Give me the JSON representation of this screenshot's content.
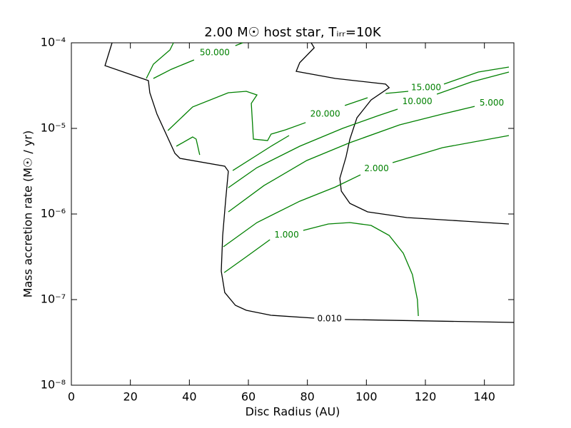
{
  "chart_data": {
    "type": "contour",
    "title": "2.00 M☉ host star, Tᵢᵣᵣ=10K",
    "xlabel": "Disc Radius (AU)",
    "ylabel": "Mass accretion rate (M☉ / yr)",
    "xlim": [
      0,
      150
    ],
    "ylim": [
      1e-08,
      0.0001
    ],
    "yscale": "log",
    "xticks": [
      0,
      20,
      40,
      60,
      80,
      100,
      120,
      140
    ],
    "yticks": [
      {
        "value": 1e-08,
        "label": "10⁻⁸"
      },
      {
        "value": 1e-07,
        "label": "10⁻⁷"
      },
      {
        "value": 1e-06,
        "label": "10⁻⁶"
      },
      {
        "value": 1e-05,
        "label": "10⁻⁵"
      },
      {
        "value": 0.0001,
        "label": "10⁻⁴"
      }
    ],
    "series": [
      {
        "value": 0.01,
        "value_label": "0.010",
        "color": "#000000",
        "x": [
          13.8,
          11.4,
          26.1,
          26.6,
          29.0,
          35.1,
          36.8,
          52.0,
          53.2,
          52.3,
          51.3,
          50.8,
          52.0,
          55.6,
          59.3,
          67.7,
          82.3,
          null,
          92.7,
          150,
          null,
          81.3,
          82.3,
          77.4,
          76.2,
          89.5,
          106.5,
          107.7,
          101.6,
          96.8,
          94.4,
          93.1,
          91.0,
          91.5,
          94.4,
          100.4,
          113.7,
          133.1,
          148.3
        ],
        "y": [
          0.0001,
          5.41e-05,
          3.62e-05,
          2.61e-05,
          1.47e-05,
          5.11e-06,
          4.47e-06,
          3.62e-06,
          3.16e-06,
          1.47e-06,
          5.62e-07,
          2.15e-07,
          1.21e-07,
          8.58e-08,
          7.5e-08,
          6.56e-08,
          6.07e-08,
          null,
          5.85e-08,
          5.41e-08,
          null,
          0.0001,
          8.75e-05,
          5.85e-05,
          4.64e-05,
          3.83e-05,
          3.29e-05,
          2.99e-05,
          2.15e-05,
          1.33e-05,
          7.5e-06,
          4.64e-06,
          2.61e-06,
          1.85e-06,
          1.33e-06,
          1.06e-06,
          9.08e-07,
          8.25e-07,
          7.64e-07
        ]
      },
      {
        "value": 1,
        "value_label": "1.000",
        "color": "#008000",
        "x": [
          51.8,
          59.3,
          67.3,
          null,
          78.6,
          87.1,
          94.4,
          101.6,
          107.7,
          112.5,
          115.6,
          117.3,
          117.6
        ],
        "y": [
          2.07e-07,
          3.16e-07,
          5.01e-07,
          null,
          6.43e-07,
          7.64e-07,
          7.94e-07,
          7.36e-07,
          5.62e-07,
          3.48e-07,
          1.96e-07,
          1e-07,
          6.43e-08
        ]
      },
      {
        "value": 2,
        "value_label": "2.000",
        "color": "#008000",
        "x": [
          51.5,
          62.9,
          77.4,
          89.5,
          98.0,
          null,
          108.9,
          125.8,
          148.3
        ],
        "y": [
          4.14e-07,
          7.94e-07,
          1.41e-06,
          2.07e-06,
          2.87e-06,
          null,
          3.98e-06,
          5.96e-06,
          8.25e-06
        ]
      },
      {
        "value": 5,
        "value_label": "5.000",
        "color": "#008000",
        "x": [
          53.2,
          65.3,
          79.8,
          94.4,
          111.3,
          125.8,
          136.7,
          null,
          148.3
        ],
        "y": [
          1.06e-06,
          2.15e-06,
          4.22e-06,
          6.81e-06,
          1.1e-05,
          1.47e-05,
          1.81e-05,
          null,
          2.15e-05
        ]
      },
      {
        "value": 10,
        "value_label": "10.000",
        "color": "#008000",
        "x": [
          53.2,
          62.9,
          77.4,
          91.9,
          104.0,
          110.6,
          null,
          123.9,
          135.5,
          148.3
        ],
        "y": [
          2.03e-06,
          3.48e-06,
          6.19e-06,
          1e-05,
          1.41e-05,
          1.68e-05,
          null,
          2.51e-05,
          3.48e-05,
          4.55e-05
        ]
      },
      {
        "value": 15,
        "value_label": "15.000",
        "color": "#008000",
        "x": [
          106.5,
          114.2,
          null,
          126.3,
          137.9,
          148.3
        ],
        "y": [
          2.56e-05,
          2.71e-05,
          null,
          3.29e-05,
          4.55e-05,
          5.21e-05
        ]
      },
      {
        "value": 20,
        "value_label": "20.000",
        "color": "#008000",
        "x": [
          32.7,
          41.1,
          53.2,
          59.3,
          62.9,
          61.0,
          61.7,
          66.5,
          67.7,
          72.6,
          79.4,
          null,
          92.7,
          100.4,
          null,
          54.7,
          67.7,
          73.8,
          null,
          35.6,
          41.1,
          42.3,
          43.5
        ],
        "y": [
          9.44e-06,
          1.78e-05,
          2.61e-05,
          2.71e-05,
          2.46e-05,
          1.96e-05,
          7.5e-06,
          7.22e-06,
          8.58e-06,
          9.62e-06,
          1.17e-05,
          null,
          1.85e-05,
          2.28e-05,
          null,
          3.22e-06,
          6.19e-06,
          8.25e-06,
          null,
          6.19e-06,
          7.94e-06,
          7.5e-06,
          4.91e-06
        ]
      },
      {
        "value": 50,
        "value_label": "50.000",
        "color": "#008000",
        "x": [
          27.8,
          33.9,
          41.6,
          null,
          55.6,
          58.1,
          null,
          25.4,
          27.8,
          33.4,
          34.6
        ],
        "y": [
          3.83e-05,
          4.91e-05,
          6.31e-05,
          null,
          9.26e-05,
          0.0001,
          null,
          3.83e-05,
          5.62e-05,
          8.25e-05,
          0.0001
        ]
      }
    ]
  }
}
